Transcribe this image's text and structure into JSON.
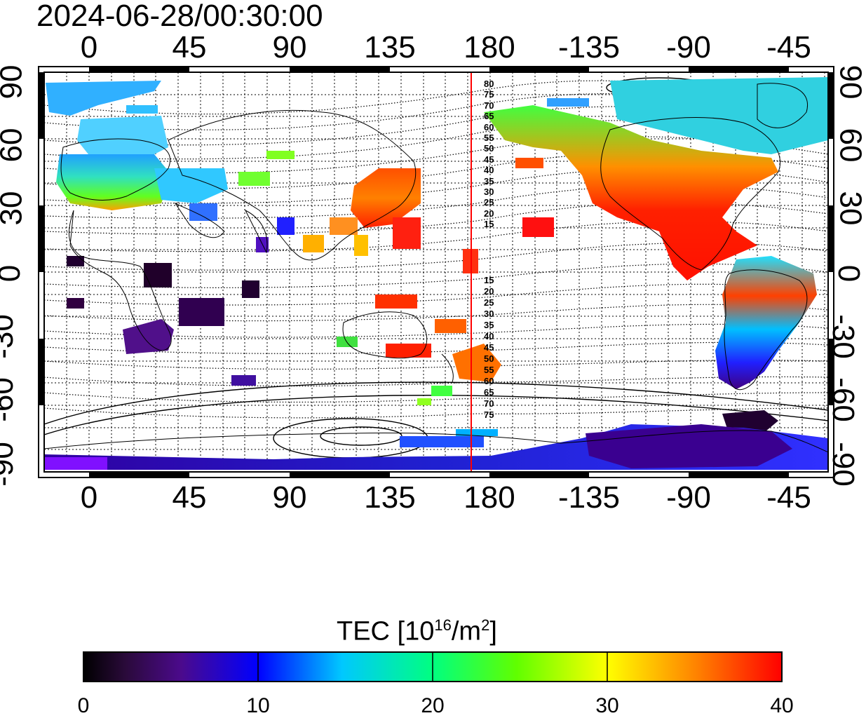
{
  "title": "2024-06-28/00:30:00",
  "x_ticks": [
    "0",
    "45",
    "90",
    "135",
    "180",
    "-135",
    "-90",
    "-45"
  ],
  "y_ticks": [
    "90",
    "60",
    "30",
    "0",
    "-30",
    "-60",
    "-90"
  ],
  "contour_labels_north": [
    "80",
    "75",
    "70",
    "65",
    "60",
    "55",
    "50",
    "45",
    "40",
    "35",
    "30",
    "25",
    "20",
    "15"
  ],
  "contour_labels_south": [
    "15",
    "20",
    "25",
    "30",
    "35",
    "40",
    "45",
    "50",
    "55",
    "60",
    "65",
    "70",
    "75"
  ],
  "colorbar": {
    "title_prefix": "TEC  [10",
    "title_sup1": "16",
    "title_mid": "/m",
    "title_sup2": "2",
    "title_suffix": "]",
    "ticks": [
      "0",
      "10",
      "20",
      "30",
      "40"
    ],
    "min": 0,
    "max": 40
  },
  "colors": {
    "meridian_line": "#ff0000",
    "frame": "#000000"
  },
  "map": {
    "central_longitude_marker": "180",
    "lon_range": [
      -20,
      340
    ],
    "lat_range": [
      -90,
      90
    ]
  }
}
